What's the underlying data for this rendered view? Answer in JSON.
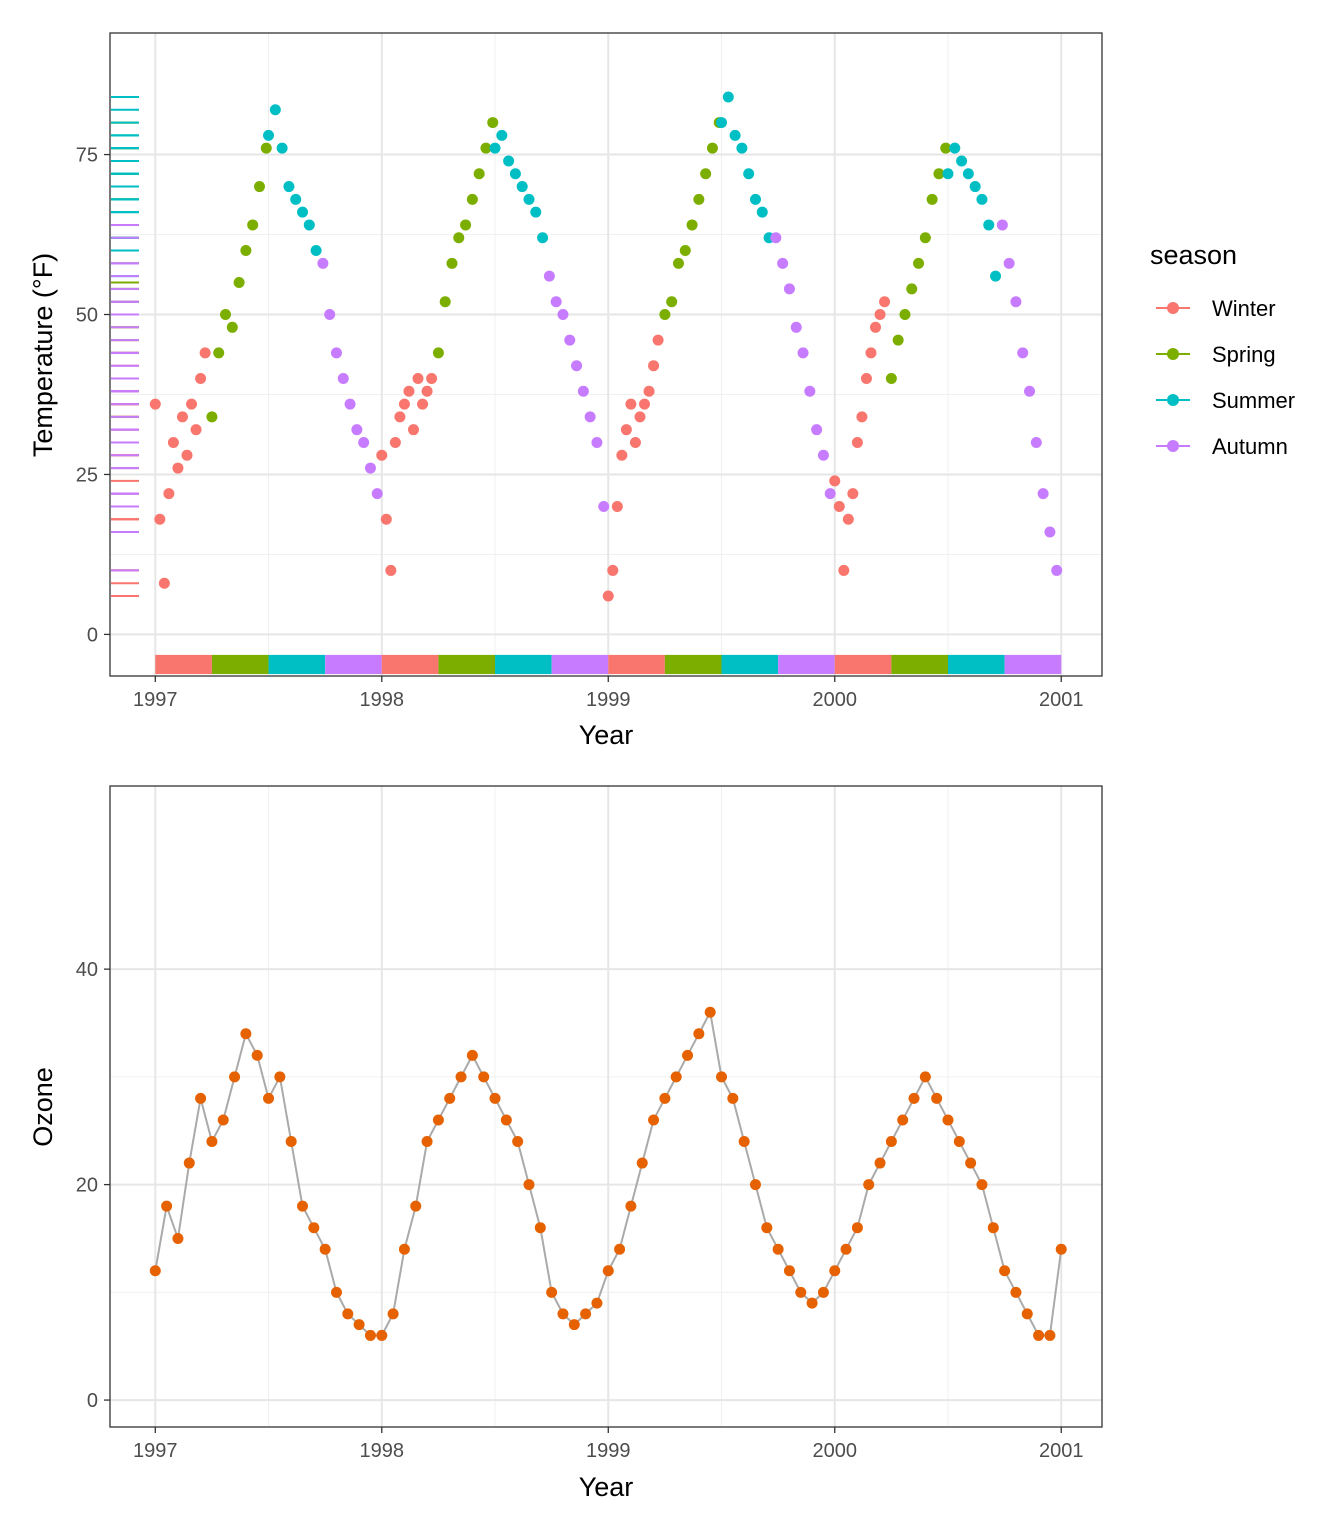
{
  "chart_data": [
    {
      "type": "scatter",
      "title": "",
      "xlabel": "Year",
      "ylabel": "Temperature (°F)",
      "xlim": [
        1996.8,
        2001.18
      ],
      "ylim": [
        -6.5,
        94
      ],
      "x_ticks": [
        1997,
        1998,
        1999,
        2000,
        2001
      ],
      "x_tick_labels": [
        "1997",
        "1998",
        "1999",
        "2000",
        "2001"
      ],
      "y_ticks": [
        0,
        25,
        50,
        75
      ],
      "y_tick_labels": [
        "0",
        "25",
        "50",
        "75"
      ],
      "grid": true,
      "legend": {
        "title": "season",
        "position": "right",
        "entries": [
          {
            "label": "Winter",
            "color": "#F8766D"
          },
          {
            "label": "Spring",
            "color": "#7CAE00"
          },
          {
            "label": "Summer",
            "color": "#00BFC4"
          },
          {
            "label": "Autumn",
            "color": "#C77CFF"
          }
        ]
      },
      "season_colors": {
        "Winter": "#F8766D",
        "Spring": "#7CAE00",
        "Summer": "#00BFC4",
        "Autumn": "#C77CFF"
      },
      "series": [
        {
          "name": "Winter",
          "x": [
            1997.0,
            1997.02,
            1997.04,
            1997.06,
            1997.08,
            1997.1,
            1997.12,
            1997.14,
            1997.16,
            1997.18,
            1997.2,
            1997.22,
            1998.0,
            1998.02,
            1998.04,
            1998.06,
            1998.08,
            1998.1,
            1998.12,
            1998.14,
            1998.16,
            1998.18,
            1998.2,
            1998.22,
            1999.0,
            1999.02,
            1999.04,
            1999.06,
            1999.08,
            1999.1,
            1999.12,
            1999.14,
            1999.16,
            1999.18,
            1999.2,
            1999.22,
            2000.0,
            2000.02,
            2000.04,
            2000.06,
            2000.08,
            2000.1,
            2000.12,
            2000.14,
            2000.16,
            2000.18,
            2000.2,
            2000.22
          ],
          "y": [
            36,
            18,
            8,
            22,
            30,
            26,
            34,
            28,
            36,
            32,
            40,
            44,
            28,
            18,
            10,
            30,
            34,
            36,
            38,
            32,
            40,
            36,
            38,
            40,
            6,
            10,
            20,
            28,
            32,
            36,
            30,
            34,
            36,
            38,
            42,
            46,
            24,
            20,
            10,
            18,
            22,
            30,
            34,
            40,
            44,
            48,
            50,
            52
          ]
        },
        {
          "name": "Spring",
          "x": [
            1997.25,
            1997.28,
            1997.31,
            1997.34,
            1997.37,
            1997.4,
            1997.43,
            1997.46,
            1997.49,
            1998.25,
            1998.28,
            1998.31,
            1998.34,
            1998.37,
            1998.4,
            1998.43,
            1998.46,
            1998.49,
            1999.25,
            1999.28,
            1999.31,
            1999.34,
            1999.37,
            1999.4,
            1999.43,
            1999.46,
            1999.49,
            2000.25,
            2000.28,
            2000.31,
            2000.34,
            2000.37,
            2000.4,
            2000.43,
            2000.46,
            2000.49
          ],
          "y": [
            34,
            44,
            50,
            48,
            55,
            60,
            64,
            70,
            76,
            44,
            52,
            58,
            62,
            64,
            68,
            72,
            76,
            80,
            50,
            52,
            58,
            60,
            64,
            68,
            72,
            76,
            80,
            40,
            46,
            50,
            54,
            58,
            62,
            68,
            72,
            76
          ]
        },
        {
          "name": "Summer",
          "x": [
            1997.5,
            1997.53,
            1997.56,
            1997.59,
            1997.62,
            1997.65,
            1997.68,
            1997.71,
            1998.5,
            1998.53,
            1998.56,
            1998.59,
            1998.62,
            1998.65,
            1998.68,
            1998.71,
            1999.5,
            1999.53,
            1999.56,
            1999.59,
            1999.62,
            1999.65,
            1999.68,
            1999.71,
            2000.5,
            2000.53,
            2000.56,
            2000.59,
            2000.62,
            2000.65,
            2000.68,
            2000.71
          ],
          "y": [
            78,
            82,
            76,
            70,
            68,
            66,
            64,
            60,
            76,
            78,
            74,
            72,
            70,
            68,
            66,
            62,
            80,
            84,
            78,
            76,
            72,
            68,
            66,
            62,
            72,
            76,
            74,
            72,
            70,
            68,
            64,
            56
          ]
        },
        {
          "name": "Autumn",
          "x": [
            1997.74,
            1997.77,
            1997.8,
            1997.83,
            1997.86,
            1997.89,
            1997.92,
            1997.95,
            1997.98,
            1998.74,
            1998.77,
            1998.8,
            1998.83,
            1998.86,
            1998.89,
            1998.92,
            1998.95,
            1998.98,
            1999.74,
            1999.77,
            1999.8,
            1999.83,
            1999.86,
            1999.89,
            1999.92,
            1999.95,
            1999.98,
            2000.74,
            2000.77,
            2000.8,
            2000.83,
            2000.86,
            2000.89,
            2000.92,
            2000.95,
            2000.98
          ],
          "y": [
            58,
            50,
            44,
            40,
            36,
            32,
            30,
            26,
            22,
            56,
            52,
            50,
            46,
            42,
            38,
            34,
            30,
            20,
            62,
            58,
            54,
            48,
            44,
            38,
            32,
            28,
            22,
            64,
            58,
            52,
            44,
            38,
            30,
            22,
            16,
            10
          ]
        }
      ],
      "rug_y_annotation": "left rug of temperature values colored by season",
      "bottom_bar_annotation": "season bands along x-axis"
    },
    {
      "type": "line",
      "title": "",
      "xlabel": "Year",
      "ylabel": "Ozone",
      "xlim": [
        1996.8,
        2001.18
      ],
      "ylim": [
        -2.5,
        57
      ],
      "x_ticks": [
        1997,
        1998,
        1999,
        2000,
        2001
      ],
      "x_tick_labels": [
        "1997",
        "1998",
        "1999",
        "2000",
        "2001"
      ],
      "y_ticks": [
        0,
        20,
        40
      ],
      "y_tick_labels": [
        "0",
        "20",
        "40"
      ],
      "grid": true,
      "point_color": "#E66100",
      "line_color": "#AAAAAA",
      "series": [
        {
          "name": "Ozone",
          "x": [
            1997.0,
            1997.05,
            1997.1,
            1997.15,
            1997.2,
            1997.25,
            1997.3,
            1997.35,
            1997.4,
            1997.45,
            1997.5,
            1997.55,
            1997.6,
            1997.65,
            1997.7,
            1997.75,
            1997.8,
            1997.85,
            1997.9,
            1997.95,
            1998.0,
            1998.05,
            1998.1,
            1998.15,
            1998.2,
            1998.25,
            1998.3,
            1998.35,
            1998.4,
            1998.45,
            1998.5,
            1998.55,
            1998.6,
            1998.65,
            1998.7,
            1998.75,
            1998.8,
            1998.85,
            1998.9,
            1998.95,
            1999.0,
            1999.05,
            1999.1,
            1999.15,
            1999.2,
            1999.25,
            1999.3,
            1999.35,
            1999.4,
            1999.45,
            1999.5,
            1999.55,
            1999.6,
            1999.65,
            1999.7,
            1999.75,
            1999.8,
            1999.85,
            1999.9,
            1999.95,
            2000.0,
            2000.05,
            2000.1,
            2000.15,
            2000.2,
            2000.25,
            2000.3,
            2000.35,
            2000.4,
            2000.45,
            2000.5,
            2000.55,
            2000.6,
            2000.65,
            2000.7,
            2000.75,
            2000.8,
            2000.85,
            2000.9,
            2000.95,
            2001.0
          ],
          "y": [
            12,
            18,
            15,
            22,
            28,
            24,
            26,
            30,
            34,
            32,
            28,
            30,
            24,
            18,
            16,
            14,
            10,
            8,
            7,
            6,
            6,
            8,
            14,
            18,
            24,
            26,
            28,
            30,
            32,
            30,
            28,
            26,
            24,
            20,
            16,
            10,
            8,
            7,
            8,
            9,
            12,
            14,
            18,
            22,
            26,
            28,
            30,
            32,
            34,
            36,
            30,
            28,
            24,
            20,
            16,
            14,
            12,
            10,
            9,
            10,
            12,
            14,
            16,
            20,
            22,
            24,
            26,
            28,
            30,
            28,
            26,
            24,
            22,
            20,
            16,
            12,
            10,
            8,
            6,
            6,
            14
          ]
        }
      ]
    }
  ]
}
